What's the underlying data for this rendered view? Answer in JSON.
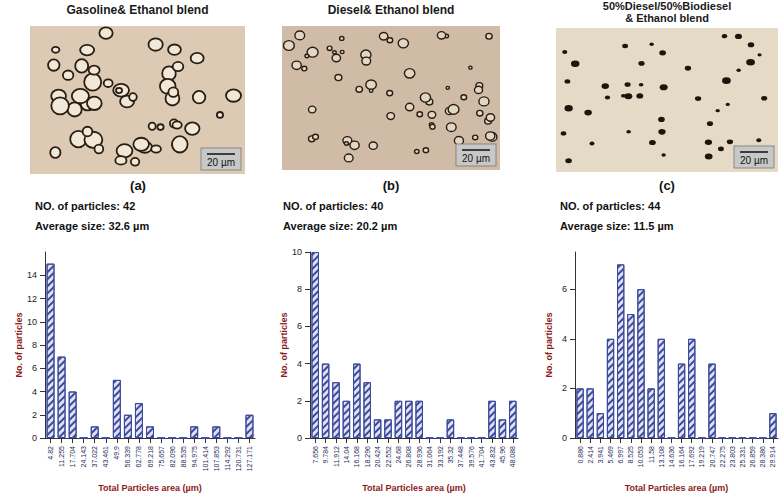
{
  "chart_data": [
    {
      "type": "bar",
      "title": "Gasoline& Ethanol blend",
      "annotations": [
        "20 µm",
        "(a)",
        "NO. of particles: 42",
        "Average size: 32.6 µm"
      ],
      "x_label": "Total Particles area (µm)",
      "y_label": "No. of particles",
      "categories": [
        "4.82",
        "11.255",
        "17.704",
        "24.143",
        "37.022",
        "43.461",
        "49.9",
        "56.339",
        "62.778",
        "69.218",
        "75.657",
        "82.096",
        "88.535",
        "94.975",
        "101.414",
        "107.853",
        "114.292",
        "120.731",
        "127.171"
      ],
      "values": [
        15,
        7,
        4,
        0,
        1,
        0,
        5,
        2,
        3,
        1,
        0,
        0,
        0,
        1,
        0,
        1,
        0,
        0,
        2
      ],
      "color": "#3b4a9c",
      "ylim": [
        0,
        16
      ],
      "yticks": [
        0,
        2,
        4,
        6,
        8,
        10,
        12,
        14
      ],
      "grid": false
    },
    {
      "type": "bar",
      "title": "Diesel& Ethanol blend",
      "annotations": [
        "20 µm",
        "(b)",
        "NO. of particles: 40",
        "Average size: 20.2  µm"
      ],
      "x_label": "Total Particles area (µm)",
      "y_label": "No. of particles",
      "categories": [
        "7.656",
        "9.784",
        "11.912",
        "14.04",
        "16.168",
        "18.296",
        "20.424",
        "22.552",
        "24.68",
        "26.808",
        "28.936",
        "31.064",
        "33.192",
        "35.32",
        "37.448",
        "39.576",
        "41.704",
        "43.832",
        "45.96",
        "48.088"
      ],
      "values": [
        10,
        4,
        3,
        2,
        4,
        3,
        1,
        1,
        2,
        2,
        2,
        0,
        0,
        1,
        0,
        0,
        0,
        2,
        1,
        2
      ],
      "color": "#3b4a9c",
      "ylim": [
        0,
        10
      ],
      "yticks": [
        0,
        2,
        4,
        6,
        8,
        10
      ],
      "grid": false
    },
    {
      "type": "bar",
      "title": "50%Diesel/50%Biodiesel\n& Ethanol blend",
      "annotations": [
        "20 µm",
        "(c)",
        "NO. of particles: 44",
        "Average size: 11.5 µm"
      ],
      "x_label": "Total Particles area (µm)",
      "y_label": "No. of particles",
      "categories": [
        "0.886",
        "2.414",
        "3.941",
        "5.469",
        "6.997",
        "8.525",
        "10.053",
        "11.58",
        "13.108",
        "14.636",
        "16.164",
        "17.692",
        "19.219",
        "20.747",
        "22.275",
        "23.803",
        "25.331",
        "26.859",
        "28.386",
        "29.914"
      ],
      "values": [
        2,
        2,
        1,
        4,
        7,
        5,
        6,
        2,
        4,
        0,
        3,
        4,
        0,
        3,
        0,
        0,
        0,
        0,
        0,
        1
      ],
      "color": "#3b4a9c",
      "ylim": [
        0,
        7.5
      ],
      "yticks": [
        0,
        2,
        4,
        6
      ],
      "grid": false
    }
  ]
}
